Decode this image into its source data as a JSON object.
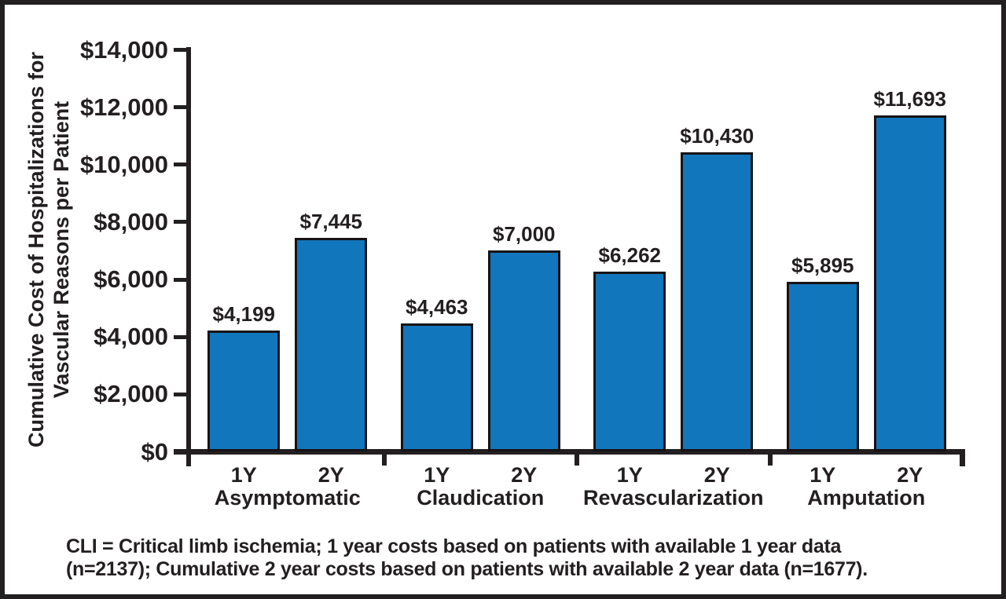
{
  "chart_data": {
    "type": "bar",
    "title": "",
    "categories": [
      "Asymptomatic",
      "Claudication",
      "Revascularization",
      "Amputation"
    ],
    "series": [
      {
        "name": "1Y",
        "values": [
          4199,
          4463,
          6262,
          5895
        ],
        "value_labels": [
          "$4,199",
          "$4,463",
          "$6,262",
          "$5,895"
        ]
      },
      {
        "name": "2Y",
        "values": [
          7445,
          7000,
          10430,
          11693
        ],
        "value_labels": [
          "$7,445",
          "$7,000",
          "$10,430",
          "$11,693"
        ]
      }
    ],
    "ylabel_lines": [
      "Cumulative Cost of Hospitalizations for",
      "Vascular Reasons per Patient"
    ],
    "ylim": [
      0,
      14000
    ],
    "ytick_values": [
      0,
      2000,
      4000,
      6000,
      8000,
      10000,
      12000,
      14000
    ],
    "ytick_labels": [
      "$0",
      "$2,000",
      "$4,000",
      "$6,000",
      "$8,000",
      "$10,000",
      "$12,000",
      "$14,000"
    ],
    "xlabel": "",
    "grid": false,
    "legend": "none",
    "colors": {
      "bar_fill": "#1276BD",
      "axis": "#231F20",
      "text": "#231F20",
      "frame_border": "#231F20",
      "background": "#FFFFFF"
    },
    "footnote_lines": [
      "CLI = Critical limb ischemia; 1 year costs based on patients with available 1 year data",
      "(n=2137); Cumulative 2 year costs based on patients with available 2 year data (n=1677)."
    ]
  }
}
